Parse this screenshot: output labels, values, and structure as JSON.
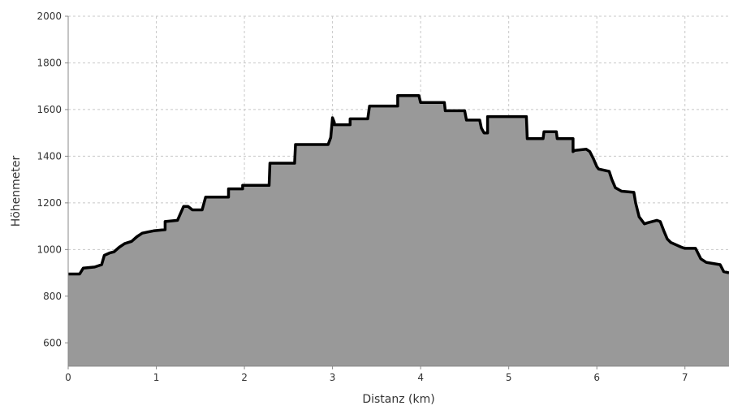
{
  "chart_data": {
    "type": "area",
    "title": "",
    "xlabel": "Distanz (km)",
    "ylabel": "Höhenmeter",
    "xlim": [
      0,
      7.5
    ],
    "ylim": [
      500,
      2000
    ],
    "xticks": [
      0,
      1,
      2,
      3,
      4,
      5,
      6,
      7
    ],
    "yticks": [
      600,
      800,
      1000,
      1200,
      1400,
      1600,
      1800,
      2000
    ],
    "grid": true,
    "legend": "none",
    "colors": {
      "fill": "#999999",
      "line": "#000000",
      "grid": "#c8c8c8",
      "background": "#ffffff"
    },
    "series": [
      {
        "x": [
          0,
          0.13,
          0.17,
          0.3,
          0.38,
          0.41,
          0.47,
          0.52,
          0.58,
          0.64,
          0.72,
          0.78,
          0.84,
          0.9,
          0.97,
          1.1,
          1.1,
          1.24,
          1.31,
          1.36,
          1.41,
          1.52,
          1.56,
          1.82,
          1.82,
          1.98,
          1.98,
          2.28,
          2.29,
          2.57,
          2.58,
          2.95,
          2.98,
          3.0,
          3.02,
          3.02,
          3.2,
          3.2,
          3.4,
          3.42,
          3.74,
          3.74,
          3.98,
          4.0,
          4.27,
          4.28,
          4.5,
          4.52,
          4.67,
          4.69,
          4.72,
          4.76,
          4.76,
          5.2,
          5.21,
          5.39,
          5.4,
          5.54,
          5.55,
          5.73,
          5.73,
          5.75,
          5.88,
          5.92,
          5.96,
          6.0,
          6.02,
          6.14,
          6.17,
          6.21,
          6.28,
          6.42,
          6.44,
          6.48,
          6.54,
          6.58,
          6.68,
          6.72,
          6.76,
          6.8,
          6.84,
          6.96,
          7.0,
          7.12,
          7.18,
          7.24,
          7.4,
          7.44,
          7.5
        ],
        "y": [
          895,
          895,
          920,
          925,
          935,
          975,
          985,
          990,
          1010,
          1025,
          1035,
          1055,
          1070,
          1075,
          1080,
          1085,
          1120,
          1125,
          1185,
          1185,
          1170,
          1170,
          1225,
          1225,
          1260,
          1260,
          1275,
          1275,
          1370,
          1370,
          1450,
          1450,
          1480,
          1565,
          1545,
          1535,
          1535,
          1560,
          1560,
          1615,
          1615,
          1660,
          1660,
          1630,
          1630,
          1595,
          1595,
          1555,
          1555,
          1520,
          1500,
          1500,
          1570,
          1570,
          1475,
          1475,
          1505,
          1505,
          1475,
          1475,
          1420,
          1425,
          1430,
          1420,
          1390,
          1355,
          1345,
          1335,
          1300,
          1265,
          1250,
          1245,
          1200,
          1140,
          1110,
          1115,
          1125,
          1120,
          1080,
          1045,
          1030,
          1010,
          1005,
          1005,
          960,
          945,
          935,
          905,
          900
        ]
      }
    ]
  }
}
